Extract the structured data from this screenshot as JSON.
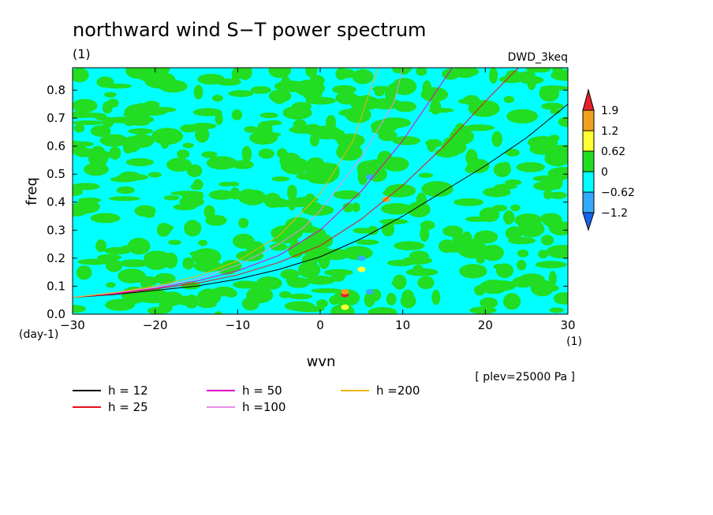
{
  "chart_data": {
    "type": "heatmap",
    "title": "northward wind S−T power spectrum",
    "units_label": "(1)",
    "dataset_label": "DWD_3keq",
    "xlabel": "wvn",
    "ylabel": "freq",
    "x_unit_label": "(1)",
    "y_unit_label": "(day-1)",
    "level_label": "[ plev=25000 Pa ]",
    "xlim": [
      -30,
      30
    ],
    "ylim": [
      0.0,
      0.88
    ],
    "x_ticks": [
      -30,
      -20,
      -10,
      0,
      10,
      20,
      30
    ],
    "x_tick_labels": [
      "−30",
      "−20",
      "−10",
      "0",
      "10",
      "20",
      "30"
    ],
    "y_ticks": [
      0.0,
      0.1,
      0.2,
      0.3,
      0.4,
      0.5,
      0.6,
      0.7,
      0.8
    ],
    "y_tick_labels": [
      "0.0",
      "0.1",
      "0.2",
      "0.3",
      "0.4",
      "0.5",
      "0.6",
      "0.7",
      "0.8"
    ],
    "colorbar": {
      "levels": [
        "1.9",
        "1.2",
        "0.62",
        "0",
        "−0.62",
        "−1.2"
      ],
      "colors": [
        "#e8202a",
        "#f0a020",
        "#ffff33",
        "#22dd22",
        "#00ffff",
        "#33aaff",
        "#1464f0"
      ]
    },
    "background_level_color": "#00ffff",
    "patch_color": "#22dd22",
    "highlights": [
      {
        "x": 3,
        "y": 0.07,
        "color": "#e8202a"
      },
      {
        "x": 3,
        "y": 0.08,
        "color": "#f0a020"
      },
      {
        "x": 5,
        "y": 0.16,
        "color": "#ffff33"
      },
      {
        "x": 3,
        "y": 0.025,
        "color": "#ffff33"
      },
      {
        "x": 5,
        "y": 0.2,
        "color": "#33aaff"
      },
      {
        "x": 6,
        "y": 0.08,
        "color": "#33aaff"
      },
      {
        "x": 6,
        "y": 0.49,
        "color": "#33aaff"
      },
      {
        "x": 8,
        "y": 0.41,
        "color": "#f0a020"
      }
    ],
    "series": [
      {
        "name": "h = 12",
        "color": "#000000",
        "x": [
          -30,
          -25,
          -20,
          -15,
          -10,
          -5,
          0,
          5,
          10,
          15,
          20,
          25,
          30
        ],
        "y": [
          0.06,
          0.07,
          0.085,
          0.1,
          0.125,
          0.16,
          0.205,
          0.27,
          0.35,
          0.44,
          0.53,
          0.63,
          0.75
        ]
      },
      {
        "name": "h = 25",
        "color": "#e8101a",
        "x": [
          -30,
          -25,
          -20,
          -15,
          -10,
          -5,
          0,
          5,
          10,
          15,
          20,
          24
        ],
        "y": [
          0.06,
          0.072,
          0.09,
          0.11,
          0.14,
          0.185,
          0.245,
          0.34,
          0.46,
          0.6,
          0.76,
          0.88
        ]
      },
      {
        "name": "h = 50",
        "color": "#e000c8",
        "x": [
          -30,
          -25,
          -20,
          -15,
          -10,
          -5,
          0,
          5,
          10,
          16
        ],
        "y": [
          0.06,
          0.074,
          0.092,
          0.118,
          0.155,
          0.21,
          0.3,
          0.44,
          0.62,
          0.88
        ]
      },
      {
        "name": "h =100",
        "color": "#e890e8",
        "x": [
          -30,
          -25,
          -20,
          -15,
          -10,
          -5,
          -2,
          0,
          5,
          9,
          10
        ],
        "y": [
          0.06,
          0.076,
          0.096,
          0.125,
          0.175,
          0.25,
          0.31,
          0.37,
          0.56,
          0.76,
          0.88
        ]
      },
      {
        "name": "h =200",
        "color": "#f0b400",
        "x": [
          -30,
          -25,
          -20,
          -15,
          -10,
          -5,
          0,
          4,
          7
        ],
        "y": [
          0.06,
          0.077,
          0.1,
          0.135,
          0.19,
          0.28,
          0.43,
          0.62,
          0.88
        ]
      }
    ]
  }
}
